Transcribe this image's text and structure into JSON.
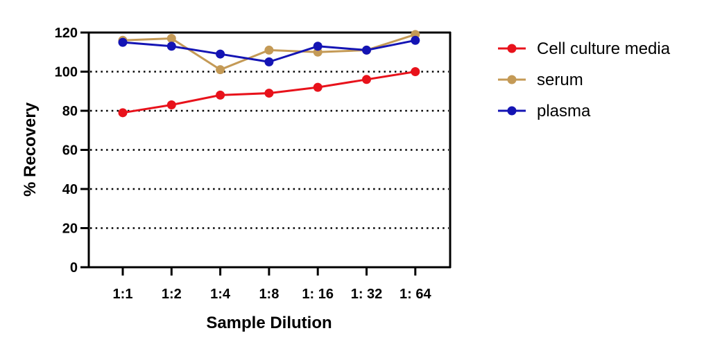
{
  "chart_data": {
    "type": "line",
    "title": "",
    "xlabel": "Sample Dilution",
    "ylabel": "% Recovery",
    "categories": [
      "1:1",
      "1:2",
      "1:4",
      "1:8",
      "1: 16",
      "1: 32",
      "1: 64"
    ],
    "ylim": [
      0,
      120
    ],
    "yticks": [
      0,
      20,
      40,
      60,
      80,
      100,
      120
    ],
    "grid": "horizontal dotted",
    "legend": "right",
    "series": [
      {
        "name": "Cell culture media",
        "color": "#e8121b",
        "values": [
          79,
          83,
          88,
          89,
          92,
          96,
          100
        ]
      },
      {
        "name": "serum",
        "color": "#c49a56",
        "values": [
          116,
          117,
          101,
          111,
          110,
          111,
          119
        ]
      },
      {
        "name": "plasma",
        "color": "#1414b4",
        "values": [
          115,
          113,
          109,
          105,
          113,
          111,
          116
        ]
      }
    ]
  }
}
